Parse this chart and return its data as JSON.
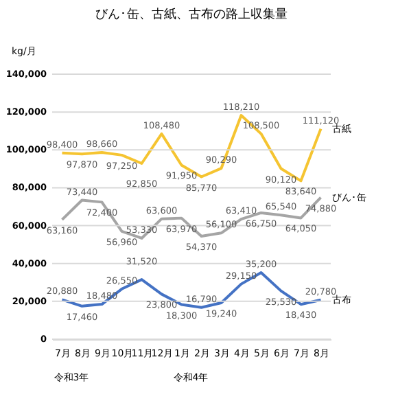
{
  "chart_data": {
    "type": "line",
    "title": "びん･缶、古紙、古布の路上収集量",
    "ylabel": "kg/月",
    "categories": [
      "7月",
      "8月",
      "9月",
      "10月",
      "11月",
      "12月",
      "1月",
      "2月",
      "3月",
      "4月",
      "5月",
      "6月",
      "7月",
      "8月"
    ],
    "series": [
      {
        "name": "古紙",
        "color": "#f5c431",
        "values": [
          98400,
          97870,
          98660,
          97250,
          92850,
          108480,
          91950,
          85770,
          90290,
          118210,
          108500,
          90120,
          83640,
          111120
        ],
        "value_labels": [
          "98,400",
          "97,870",
          "98,660",
          "97,250",
          "92,850",
          "108,480",
          "91,950",
          "85,770",
          "90,290",
          "118,210",
          "108,500",
          "90,120",
          "83,640",
          "111,120"
        ]
      },
      {
        "name": "びん･缶",
        "color": "#a5a5a5",
        "values": [
          63160,
          73440,
          72400,
          56960,
          53330,
          63600,
          63970,
          54370,
          56100,
          63410,
          66750,
          65540,
          64050,
          74880
        ],
        "value_labels": [
          "63,160",
          "73,440",
          "72,400",
          "56,960",
          "53,330",
          "63,600",
          "63,970",
          "54,370",
          "56,100",
          "63,410",
          "66,750",
          "65,540",
          "64,050",
          "74,880"
        ]
      },
      {
        "name": "古布",
        "color": "#4472c4",
        "values": [
          20880,
          17460,
          18480,
          26550,
          31520,
          23800,
          18300,
          16790,
          19240,
          29150,
          35200,
          25530,
          18430,
          20780
        ],
        "value_labels": [
          "20,880",
          "17,460",
          "18,480",
          "26,550",
          "31,520",
          "23,800",
          "18,300",
          "16,790",
          "19,240",
          "29,150",
          "35,200",
          "25,530",
          "18,430",
          "20,780"
        ]
      }
    ],
    "ylim": [
      0,
      140000
    ],
    "yticks": [
      {
        "value": 0,
        "label": "0"
      },
      {
        "value": 20000,
        "label": "20,000"
      },
      {
        "value": 40000,
        "label": "40,000"
      },
      {
        "value": 60000,
        "label": "60,000"
      },
      {
        "value": 80000,
        "label": "80,000"
      },
      {
        "value": 100000,
        "label": "100,000"
      },
      {
        "value": 120000,
        "label": "120,000"
      },
      {
        "value": 140000,
        "label": "140,000"
      }
    ],
    "grid": "y",
    "marker": "none",
    "line_style": "solid",
    "annotations": [
      "令和3年",
      "令和4年"
    ]
  }
}
